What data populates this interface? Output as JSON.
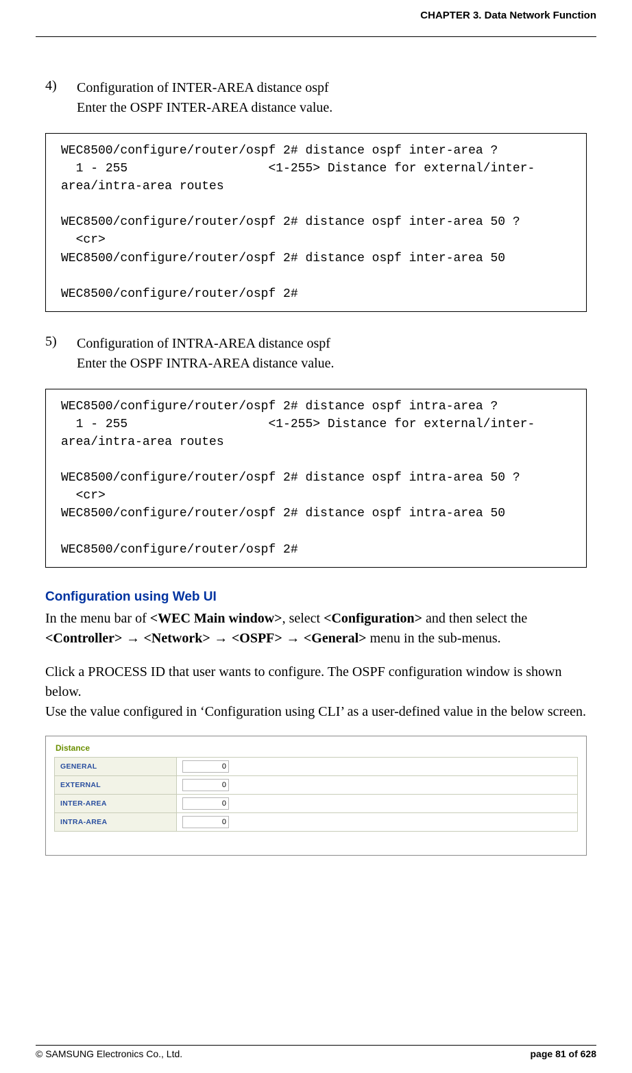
{
  "header": {
    "chapter": "CHAPTER 3. Data Network Function"
  },
  "step4": {
    "number": "4)",
    "title": "Configuration of INTER-AREA distance ospf",
    "desc": "Enter the OSPF INTER-AREA distance value."
  },
  "code1": "WEC8500/configure/router/ospf 2# distance ospf inter-area ?\n  1 - 255                   <1-255> Distance for external/inter-area/intra-area routes\n\nWEC8500/configure/router/ospf 2# distance ospf inter-area 50 ?\n  <cr>\nWEC8500/configure/router/ospf 2# distance ospf inter-area 50\n\nWEC8500/configure/router/ospf 2#",
  "step5": {
    "number": "5)",
    "title": "Configuration of INTRA-AREA distance ospf",
    "desc": "Enter the OSPF INTRA-AREA distance value."
  },
  "code2": "WEC8500/configure/router/ospf 2# distance ospf intra-area ?\n  1 - 255                   <1-255> Distance for external/inter-area/intra-area routes\n\nWEC8500/configure/router/ospf 2# distance ospf intra-area 50 ?\n  <cr>\nWEC8500/configure/router/ospf 2# distance ospf intra-area 50\n\nWEC8500/configure/router/ospf 2#",
  "webui": {
    "heading": "Configuration using Web UI",
    "p1_a": "In the menu bar of ",
    "p1_b": "<WEC Main window>",
    "p1_c": ", select ",
    "p1_d": "<Configuration>",
    "p1_e": " and then select the ",
    "p1_f": "<Controller>",
    "p1_g": "<Network>",
    "p1_h": "<OSPF>",
    "p1_i": "<General>",
    "p1_j": " menu in the sub-menus.",
    "arrow": " → ",
    "p2": "Click a PROCESS ID that user wants to configure. The OSPF configuration window is shown below.",
    "p3": "Use the value configured in ‘Configuration using CLI’ as a user-defined value in the below screen."
  },
  "panel": {
    "title": "Distance",
    "rows": [
      {
        "label": "GENERAL",
        "value": "0"
      },
      {
        "label": "EXTERNAL",
        "value": "0"
      },
      {
        "label": "INTER-AREA",
        "value": "0"
      },
      {
        "label": "INTRA-AREA",
        "value": "0"
      }
    ]
  },
  "footer": {
    "copyright": "© SAMSUNG Electronics Co., Ltd.",
    "page": "page 81 of 628"
  },
  "colors": {
    "heading_blue": "#0033a0",
    "panel_green": "#6b8f00",
    "label_blue": "#2a4f9f",
    "label_bg": "#f2f3e7",
    "border": "#c8cdb8"
  }
}
